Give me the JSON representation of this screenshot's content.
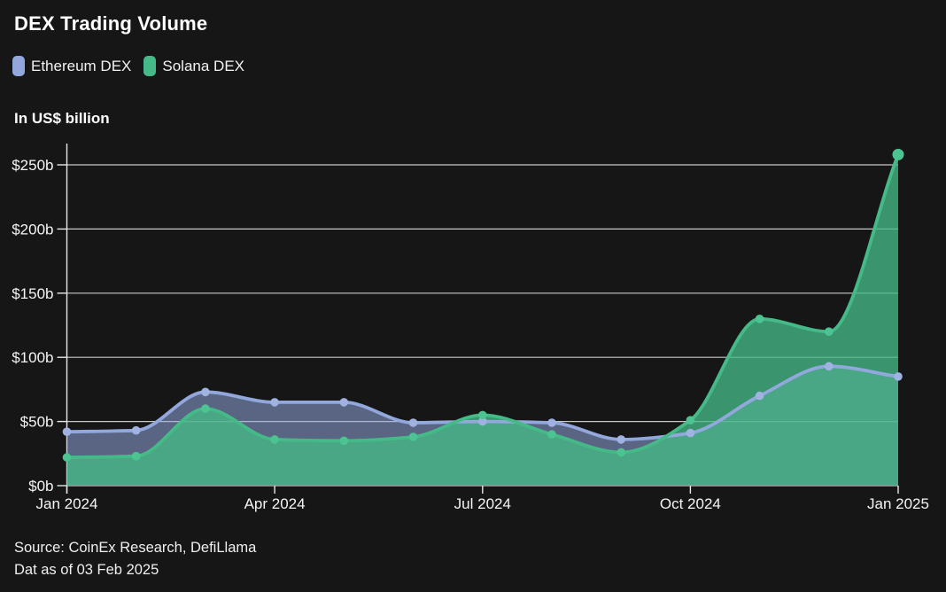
{
  "header": {
    "title": "DEX Trading Volume",
    "unit_label": "In US$ billion"
  },
  "legend": {
    "items": [
      {
        "label": "Ethereum DEX",
        "color": "#92a8dc"
      },
      {
        "label": "Solana DEX",
        "color": "#45ba88"
      }
    ]
  },
  "footer": {
    "source_line": "Source: CoinEx Research, DefiLlama",
    "as_of_line": "Dat as of 03 Feb 2025"
  },
  "chart_data": {
    "type": "area",
    "title": "DEX Trading Volume",
    "unit": "US$ billion",
    "x": [
      "Jan 2024",
      "Feb 2024",
      "Mar 2024",
      "Apr 2024",
      "May 2024",
      "Jun 2024",
      "Jul 2024",
      "Aug 2024",
      "Sep 2024",
      "Oct 2024",
      "Nov 2024",
      "Dec 2024",
      "Jan 2025"
    ],
    "series": [
      {
        "name": "Ethereum DEX",
        "color": "#92a8dc",
        "point_color": "#9fb2e2",
        "fill_opacity": 0.55,
        "values": [
          42,
          43,
          73,
          65,
          65,
          49,
          50,
          49,
          36,
          41,
          70,
          93,
          85
        ]
      },
      {
        "name": "Solana DEX",
        "color": "#45ba88",
        "point_color": "#4cc491",
        "fill_opacity": 0.78,
        "values": [
          22,
          23,
          60,
          36,
          35,
          38,
          55,
          40,
          26,
          51,
          130,
          120,
          258
        ]
      }
    ],
    "ylim": [
      0,
      250
    ],
    "y_ticks": [
      0,
      50,
      100,
      150,
      200,
      250
    ],
    "y_tick_labels": [
      "$0b",
      "$50b",
      "$100b",
      "$150b",
      "$200b",
      "$250b"
    ],
    "x_tick_indices": [
      0,
      3,
      6,
      9,
      12
    ],
    "x_tick_labels": [
      "Jan 2024",
      "Apr 2024",
      "Jul 2024",
      "Oct 2024",
      "Jan 2025"
    ],
    "grid": "horizontal",
    "legend_position": "top-left",
    "colors": {
      "background": "#161616",
      "grid": "#e8e8e8",
      "text": "#f5f5f5"
    }
  }
}
